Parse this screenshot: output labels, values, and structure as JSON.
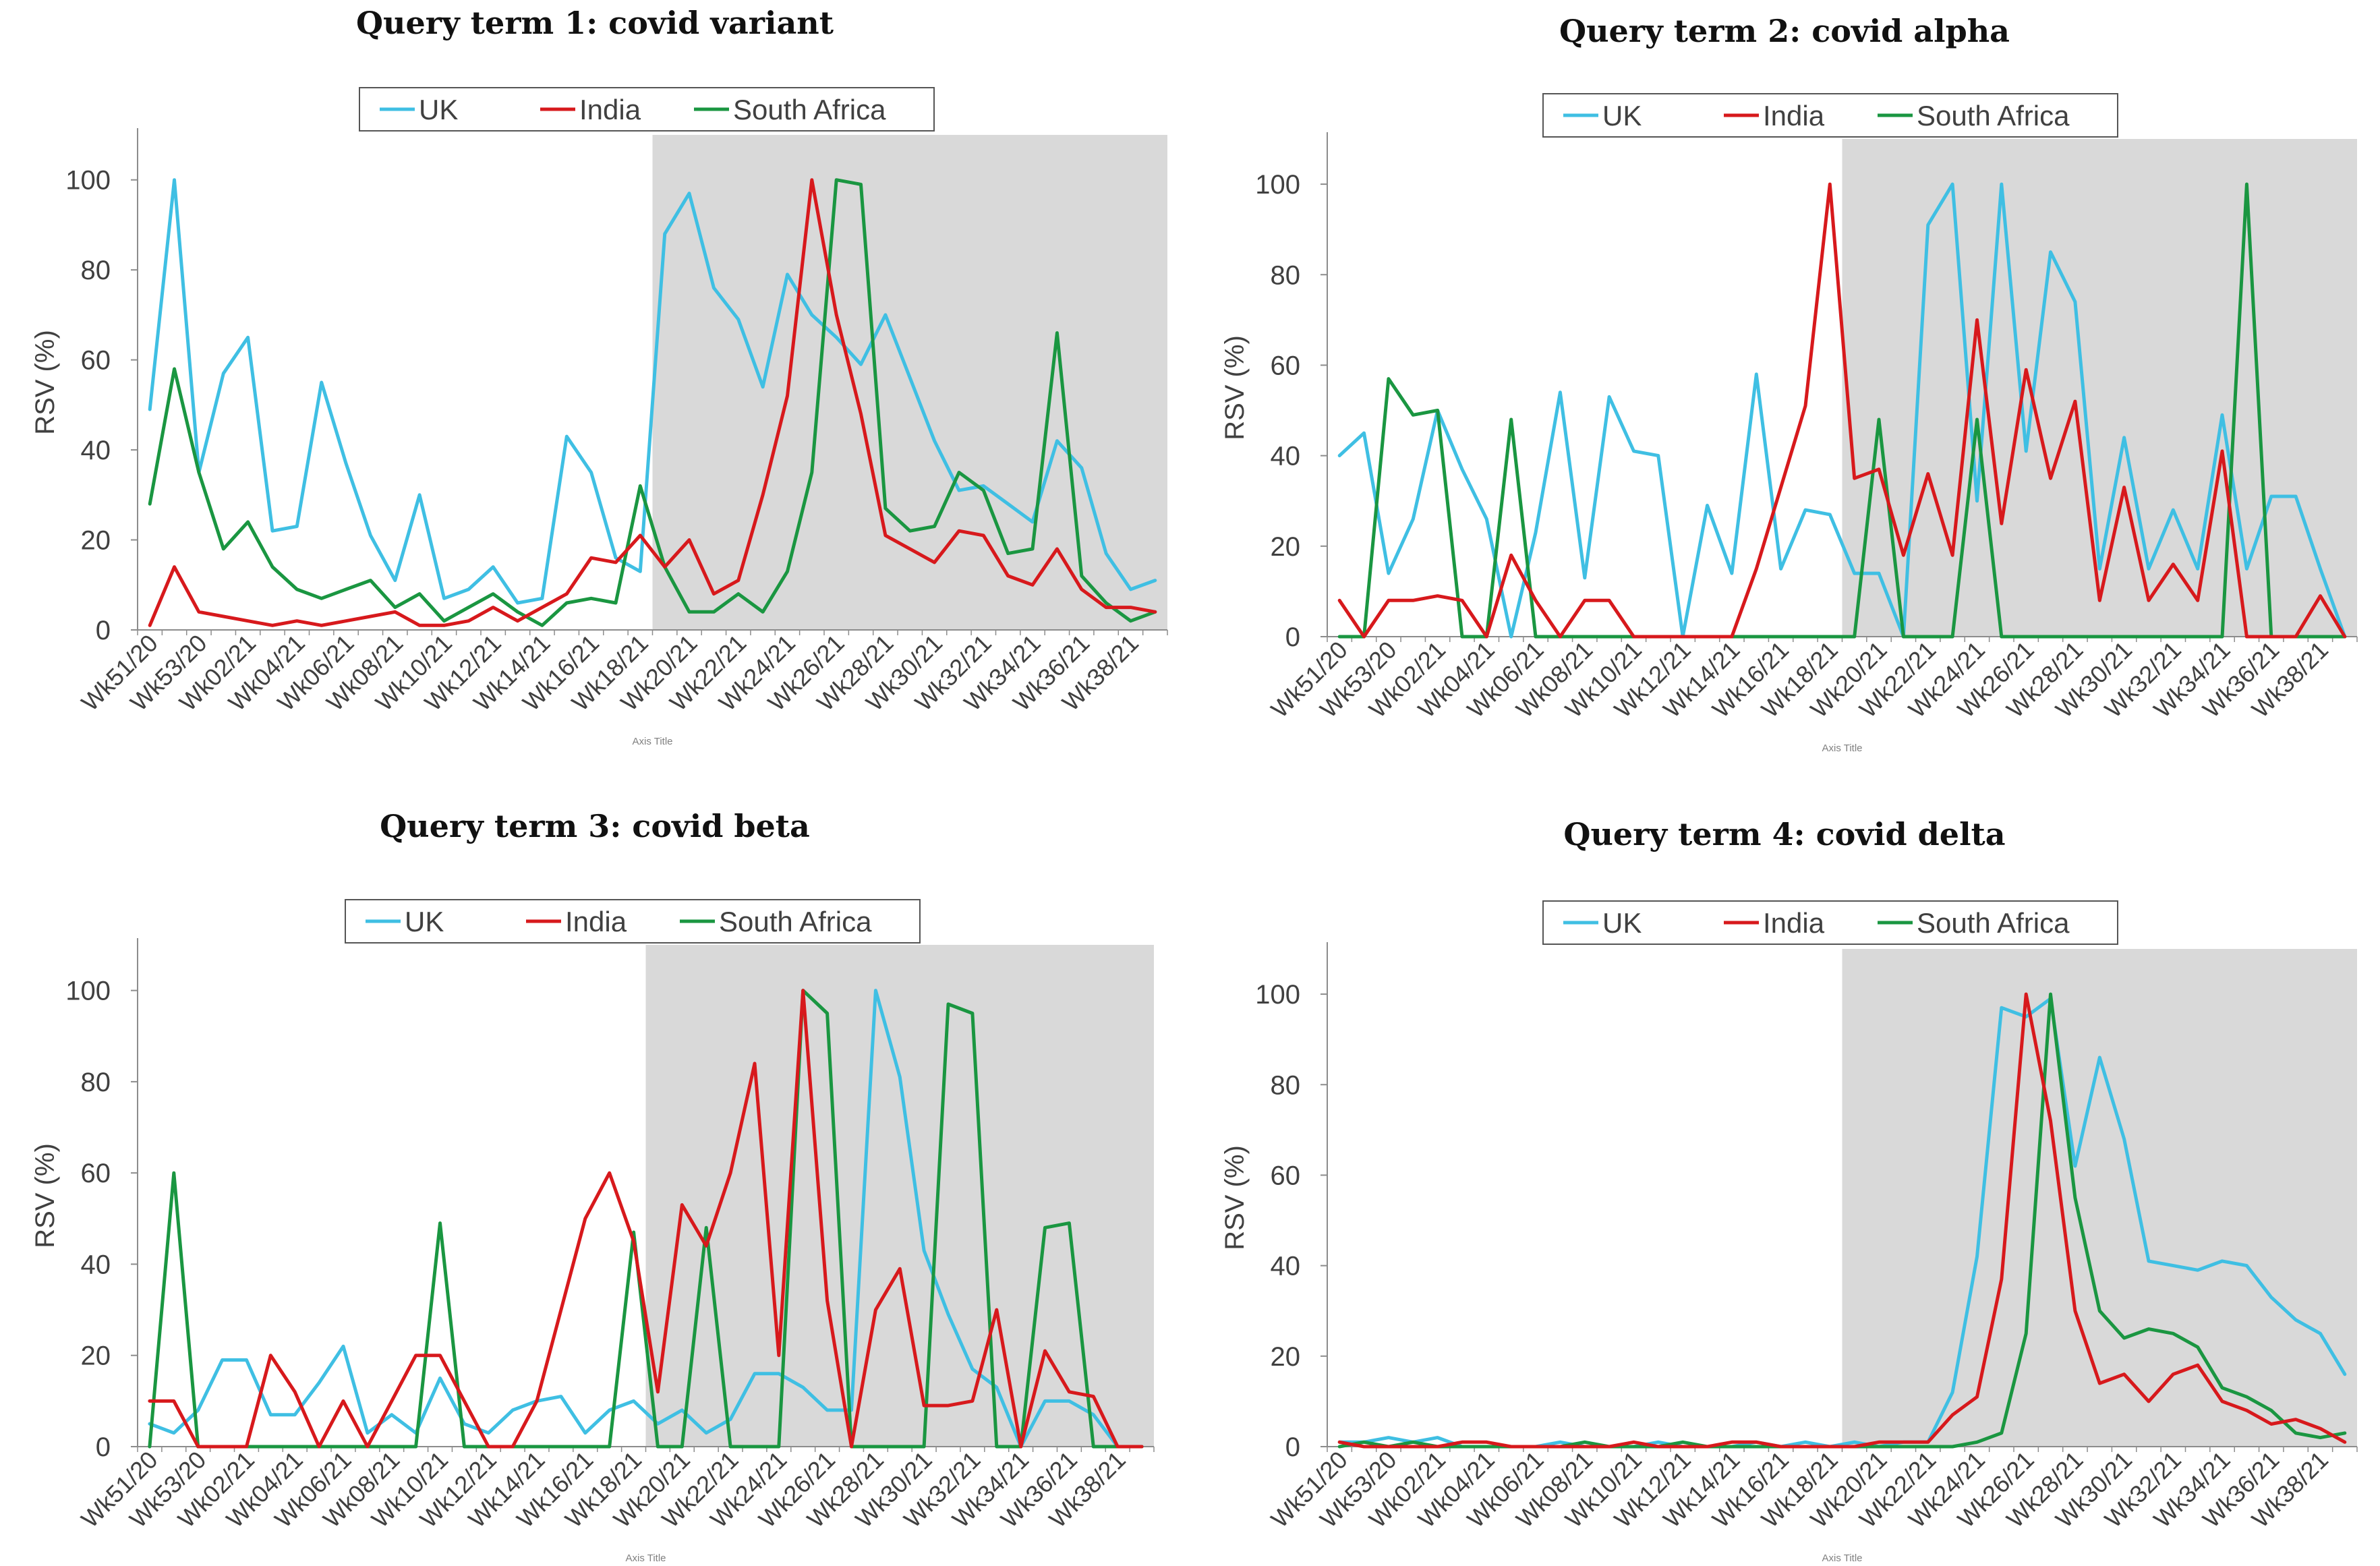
{
  "colors": {
    "UK": "#3fbfe3",
    "India": "#d7191c",
    "South Africa": "#1a9641",
    "shade": "#d9d9d9"
  },
  "chart_data": [
    {
      "type": "line",
      "title": "Query term 1: covid variant",
      "ylabel": "RSV (%)",
      "xlabel": "Axis Title",
      "ylim": [
        0,
        110
      ],
      "yticks": [
        "0",
        "20",
        "40",
        "60",
        "80",
        "100"
      ],
      "xtick_labels": [
        "Wk51/20",
        "Wk53/20",
        "Wk02/21",
        "Wk04/21",
        "Wk06/21",
        "Wk08/21",
        "Wk10/21",
        "Wk12/21",
        "Wk14/21",
        "Wk16/21",
        "Wk18/21",
        "Wk20/21",
        "Wk22/21",
        "Wk24/21",
        "Wk26/21",
        "Wk28/21",
        "Wk30/21",
        "Wk32/21",
        "Wk34/21",
        "Wk36/21",
        "Wk38/21"
      ],
      "shaded_from_index": 21,
      "legend": [
        "UK",
        "India",
        "South Africa"
      ],
      "series": [
        {
          "name": "UK",
          "values": [
            49,
            100,
            35,
            57,
            65,
            22,
            23,
            55,
            37,
            21,
            11,
            30,
            7,
            9,
            14,
            6,
            7,
            43,
            35,
            16,
            13,
            88,
            97,
            76,
            69,
            54,
            79,
            70,
            65,
            59,
            70,
            56,
            42,
            31,
            32,
            28,
            24,
            42,
            36,
            17,
            9,
            11
          ]
        },
        {
          "name": "India",
          "values": [
            1,
            14,
            4,
            3,
            2,
            1,
            2,
            1,
            2,
            3,
            4,
            1,
            1,
            2,
            5,
            2,
            5,
            8,
            16,
            15,
            21,
            14,
            20,
            8,
            11,
            30,
            52,
            100,
            70,
            48,
            21,
            18,
            15,
            22,
            21,
            12,
            10,
            18,
            9,
            5,
            5,
            4
          ]
        },
        {
          "name": "South Africa",
          "values": [
            28,
            58,
            35,
            18,
            24,
            14,
            9,
            7,
            9,
            11,
            5,
            8,
            2,
            5,
            8,
            4,
            1,
            6,
            7,
            6,
            32,
            14,
            4,
            4,
            8,
            4,
            13,
            35,
            100,
            99,
            27,
            22,
            23,
            35,
            31,
            17,
            18,
            66,
            12,
            6,
            2,
            4
          ]
        }
      ]
    },
    {
      "type": "line",
      "title": "Query term 2: covid alpha",
      "ylabel": "RSV (%)",
      "xlabel": "Axis Title",
      "ylim": [
        0,
        110
      ],
      "yticks": [
        "0",
        "20",
        "40",
        "60",
        "80",
        "100"
      ],
      "xtick_labels": [
        "Wk51/20",
        "Wk53/20",
        "Wk02/21",
        "Wk04/21",
        "Wk06/21",
        "Wk08/21",
        "Wk10/21",
        "Wk12/21",
        "Wk14/21",
        "Wk16/21",
        "Wk18/21",
        "Wk20/21",
        "Wk22/21",
        "Wk24/21",
        "Wk26/21",
        "Wk28/21",
        "Wk30/21",
        "Wk32/21",
        "Wk34/21",
        "Wk36/21",
        "Wk38/21"
      ],
      "shaded_from_index": 21,
      "legend": [
        "UK",
        "India",
        "South Africa"
      ],
      "series": [
        {
          "name": "UK",
          "values": [
            40,
            45,
            14,
            26,
            50,
            37,
            26,
            0,
            23,
            54,
            13,
            53,
            41,
            40,
            0,
            29,
            14,
            58,
            15,
            28,
            27,
            14,
            14,
            0,
            91,
            100,
            30,
            100,
            41,
            85,
            74,
            15,
            44,
            15,
            28,
            15,
            49,
            15,
            31,
            31,
            15,
            0
          ]
        },
        {
          "name": "India",
          "values": [
            8,
            0,
            8,
            8,
            9,
            8,
            0,
            18,
            8,
            0,
            8,
            8,
            0,
            0,
            0,
            0,
            0,
            15,
            33,
            51,
            100,
            35,
            37,
            18,
            36,
            18,
            70,
            25,
            59,
            35,
            52,
            8,
            33,
            8,
            16,
            8,
            41,
            0,
            0,
            0,
            9,
            0
          ]
        },
        {
          "name": "South Africa",
          "values": [
            0,
            0,
            57,
            49,
            50,
            0,
            0,
            48,
            0,
            0,
            0,
            0,
            0,
            0,
            0,
            0,
            0,
            0,
            0,
            0,
            0,
            0,
            48,
            0,
            0,
            0,
            48,
            0,
            0,
            0,
            0,
            0,
            0,
            0,
            0,
            0,
            0,
            100,
            0,
            0,
            0,
            0
          ]
        }
      ]
    },
    {
      "type": "line",
      "title": "Query term 3: covid beta",
      "ylabel": "RSV (%)",
      "xlabel": "Axis Title",
      "ylim": [
        0,
        110
      ],
      "yticks": [
        "0",
        "20",
        "40",
        "60",
        "80",
        "100"
      ],
      "xtick_labels": [
        "Wk51/20",
        "Wk53/20",
        "Wk02/21",
        "Wk04/21",
        "Wk06/21",
        "Wk08/21",
        "Wk10/21",
        "Wk12/21",
        "Wk14/21",
        "Wk16/21",
        "Wk18/21",
        "Wk20/21",
        "Wk22/21",
        "Wk24/21",
        "Wk26/21",
        "Wk28/21",
        "Wk30/21",
        "Wk32/21",
        "Wk34/21",
        "Wk36/21",
        "Wk38/21"
      ],
      "shaded_from_index": 21,
      "legend": [
        "UK",
        "India",
        "South Africa"
      ],
      "series": [
        {
          "name": "UK",
          "values": [
            5,
            3,
            8,
            19,
            19,
            7,
            7,
            14,
            22,
            3,
            7,
            3,
            15,
            5,
            3,
            8,
            10,
            11,
            3,
            8,
            10,
            5,
            8,
            3,
            6,
            16,
            16,
            13,
            8,
            8,
            100,
            81,
            43,
            29,
            17,
            13,
            0,
            10,
            10,
            7,
            0,
            0
          ]
        },
        {
          "name": "India",
          "values": [
            10,
            10,
            0,
            0,
            0,
            20,
            12,
            0,
            10,
            0,
            10,
            20,
            20,
            10,
            0,
            0,
            10,
            30,
            50,
            60,
            45,
            12,
            53,
            44,
            60,
            84,
            20,
            100,
            32,
            0,
            30,
            39,
            9,
            9,
            10,
            30,
            0,
            21,
            12,
            11,
            0,
            0
          ]
        },
        {
          "name": "South Africa",
          "values": [
            0,
            60,
            0,
            0,
            0,
            0,
            0,
            0,
            0,
            0,
            0,
            0,
            49,
            0,
            0,
            0,
            0,
            0,
            0,
            0,
            47,
            0,
            0,
            48,
            0,
            0,
            0,
            100,
            95,
            0,
            0,
            0,
            0,
            97,
            95,
            0,
            0,
            48,
            49,
            0,
            0,
            0
          ]
        }
      ]
    },
    {
      "type": "line",
      "title": "Query term 4: covid delta",
      "ylabel": "RSV (%)",
      "xlabel": "Axis Title",
      "ylim": [
        0,
        110
      ],
      "yticks": [
        "0",
        "20",
        "40",
        "60",
        "80",
        "100"
      ],
      "xtick_labels": [
        "Wk51/20",
        "Wk53/20",
        "Wk02/21",
        "Wk04/21",
        "Wk06/21",
        "Wk08/21",
        "Wk10/21",
        "Wk12/21",
        "Wk14/21",
        "Wk16/21",
        "Wk18/21",
        "Wk20/21",
        "Wk22/21",
        "Wk24/21",
        "Wk26/21",
        "Wk28/21",
        "Wk30/21",
        "Wk32/21",
        "Wk34/21",
        "Wk36/21",
        "Wk38/21"
      ],
      "shaded_from_index": 21,
      "legend": [
        "UK",
        "India",
        "South Africa"
      ],
      "series": [
        {
          "name": "UK",
          "values": [
            1,
            1,
            2,
            1,
            2,
            0,
            0,
            0,
            0,
            1,
            0,
            0,
            0,
            1,
            0,
            0,
            0,
            1,
            0,
            1,
            0,
            1,
            0,
            1,
            1,
            12,
            42,
            97,
            95,
            99,
            62,
            86,
            68,
            41,
            40,
            39,
            41,
            40,
            33,
            28,
            25,
            16
          ]
        },
        {
          "name": "India",
          "values": [
            1,
            0,
            0,
            0,
            0,
            1,
            1,
            0,
            0,
            0,
            0,
            0,
            1,
            0,
            0,
            0,
            1,
            1,
            0,
            0,
            0,
            0,
            1,
            1,
            1,
            7,
            11,
            37,
            100,
            72,
            30,
            14,
            16,
            10,
            16,
            18,
            10,
            8,
            5,
            6,
            4,
            1
          ]
        },
        {
          "name": "South Africa",
          "values": [
            0,
            1,
            0,
            1,
            0,
            0,
            0,
            0,
            0,
            0,
            1,
            0,
            0,
            0,
            1,
            0,
            0,
            0,
            0,
            0,
            0,
            0,
            0,
            0,
            0,
            0,
            1,
            3,
            25,
            100,
            55,
            30,
            24,
            26,
            25,
            22,
            13,
            11,
            8,
            3,
            2,
            3
          ]
        }
      ]
    }
  ]
}
